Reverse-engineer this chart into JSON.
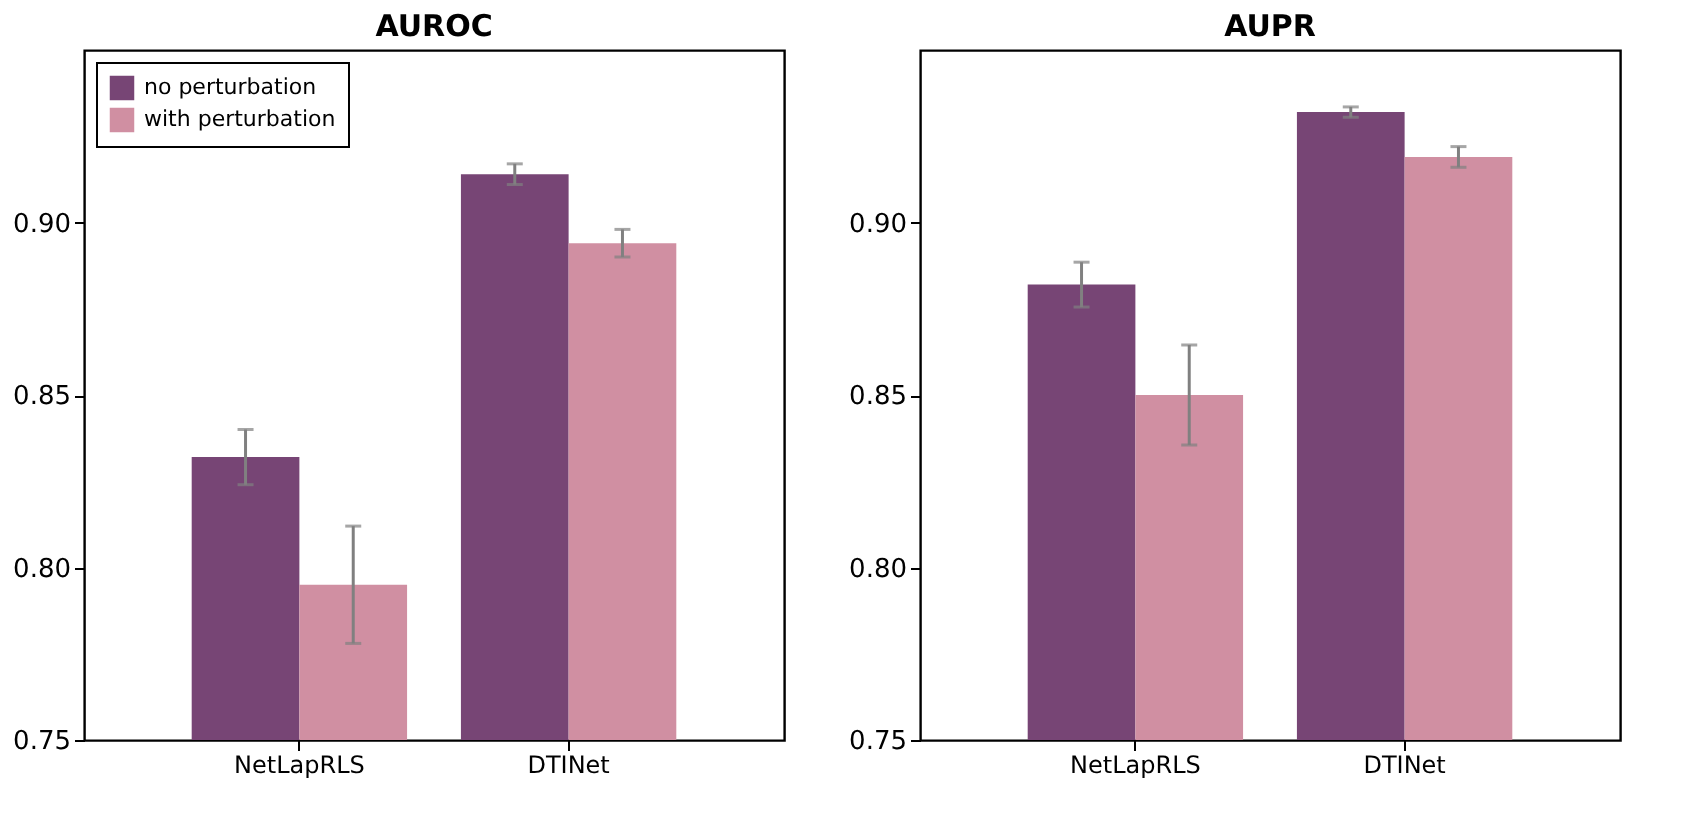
{
  "chart_data": [
    {
      "type": "bar",
      "title": "AUROC",
      "categories": [
        "NetLapRLS",
        "DTINet"
      ],
      "ylim": [
        0.75,
        0.95
      ],
      "yticks": [
        {
          "value": 0.75,
          "label": "0.75"
        },
        {
          "value": 0.8,
          "label": "0.80"
        },
        {
          "value": 0.85,
          "label": "0.85"
        },
        {
          "value": 0.9,
          "label": "0.90"
        }
      ],
      "legend": "top left",
      "series": [
        {
          "name": "no perturbation",
          "color": "#774575",
          "values": [
            0.832,
            0.914
          ],
          "errors": [
            0.008,
            0.003
          ]
        },
        {
          "name": "with perturbation",
          "color": "#d08fa2",
          "values": [
            0.795,
            0.894
          ],
          "errors": [
            0.017,
            0.004
          ]
        }
      ]
    },
    {
      "type": "bar",
      "title": "AUPR",
      "categories": [
        "NetLapRLS",
        "DTINet"
      ],
      "ylim": [
        0.75,
        0.95
      ],
      "yticks": [
        {
          "value": 0.75,
          "label": "0.75"
        },
        {
          "value": 0.8,
          "label": "0.80"
        },
        {
          "value": 0.85,
          "label": "0.85"
        },
        {
          "value": 0.9,
          "label": "0.90"
        }
      ],
      "legend": false,
      "series": [
        {
          "name": "no perturbation",
          "color": "#774575",
          "values": [
            0.882,
            0.932
          ],
          "errors": [
            0.0065,
            0.0015
          ]
        },
        {
          "name": "with perturbation",
          "color": "#d08fa2",
          "values": [
            0.85,
            0.919
          ],
          "errors": [
            0.0145,
            0.003
          ]
        }
      ]
    }
  ]
}
